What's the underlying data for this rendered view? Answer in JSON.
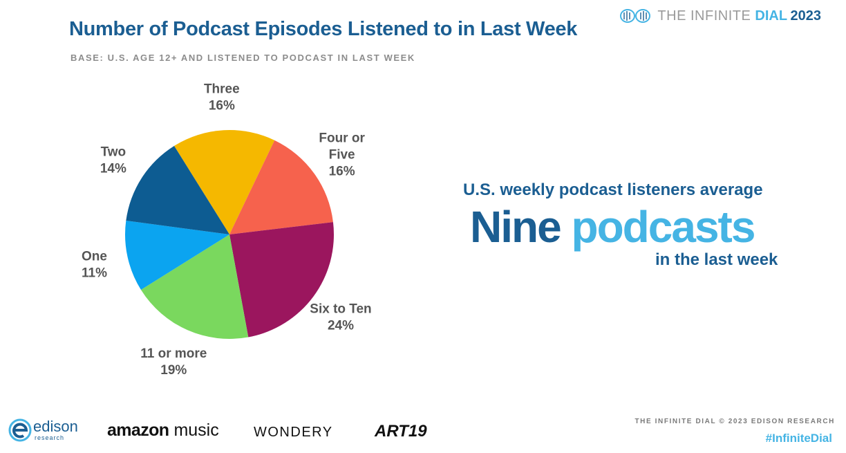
{
  "header": {
    "title": "Number of Podcast Episodes Listened to in Last Week",
    "subtitle": "BASE: U.S. AGE 12+ AND LISTENED TO PODCAST IN LAST WEEK",
    "brand_part1": "THE INFINITE ",
    "brand_part2": "DIAL",
    "brand_year": "2023"
  },
  "chart_data": {
    "type": "pie",
    "title": "Number of Podcast Episodes Listened to in Last Week",
    "subtitle": "BASE: U.S. AGE 12+ AND LISTENED TO PODCAST IN LAST WEEK",
    "slices": [
      {
        "label": "Three",
        "label_lines": [
          "Three"
        ],
        "value": 16,
        "display": "16%",
        "color": "#f5b800"
      },
      {
        "label": "Four or Five",
        "label_lines": [
          "Four or",
          "Five"
        ],
        "value": 16,
        "display": "16%",
        "color": "#f6624d"
      },
      {
        "label": "Six to Ten",
        "label_lines": [
          "Six to Ten"
        ],
        "value": 24,
        "display": "24%",
        "color": "#9b165e"
      },
      {
        "label": "11 or more",
        "label_lines": [
          "11 or more"
        ],
        "value": 19,
        "display": "19%",
        "color": "#7ad85e"
      },
      {
        "label": "One",
        "label_lines": [
          "One"
        ],
        "value": 11,
        "display": "11%",
        "color": "#0ba4f0"
      },
      {
        "label": "Two",
        "label_lines": [
          "Two"
        ],
        "value": 14,
        "display": "14%",
        "color": "#0d5c92"
      }
    ]
  },
  "callout": {
    "lead": "U.S. weekly podcast listeners average",
    "big_word1": "Nine",
    "big_word2": "podcasts",
    "tail": "in the last week"
  },
  "footer": {
    "logos": {
      "edison_name": "edison",
      "edison_sub": "research",
      "amazon_word1": "amazon",
      "amazon_word2": "music",
      "wondery": "WONDERY",
      "art19": "ART19"
    },
    "credit": "THE INFINITE DIAL   © 2023 EDISON RESEARCH",
    "hashtag": "#InfiniteDial"
  },
  "colors": {
    "title_blue": "#1b5e92",
    "accent_light_blue": "#45b4e4",
    "label_gray": "#555555"
  }
}
